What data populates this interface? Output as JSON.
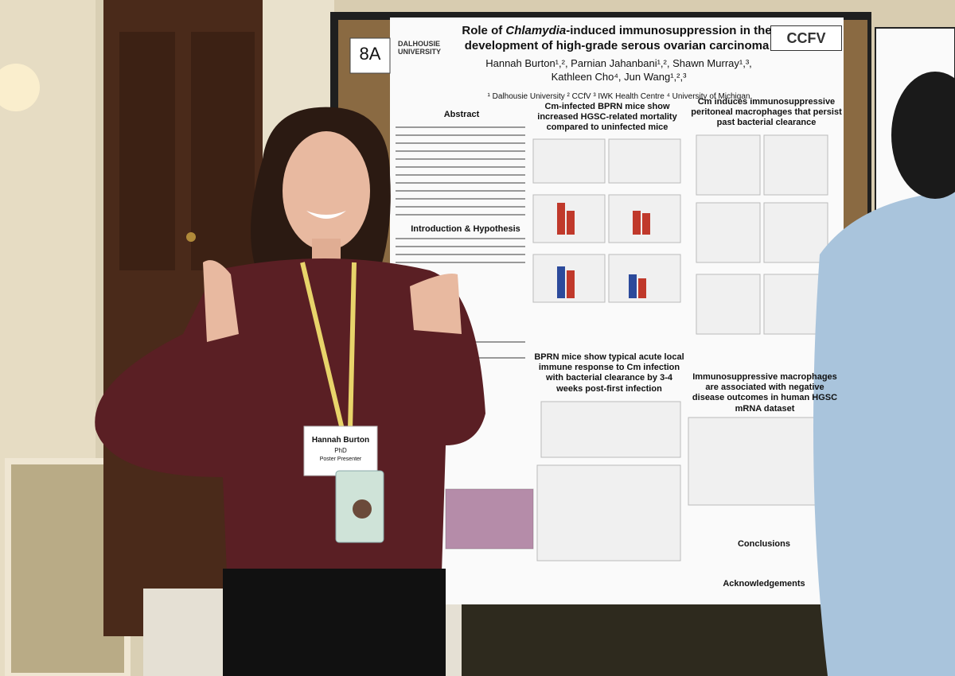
{
  "poster": {
    "number": "8A",
    "logo_left": "DALHOUSIE UNIVERSITY",
    "logo_right": "CCFV",
    "title": {
      "before": "Role of ",
      "italic": "Chlamydia",
      "after": "-induced immunosuppression in the development of high-grade serous ovarian carcinoma"
    },
    "authors": "Hannah Burton¹,², Parnian Jahanbani¹,², Shawn Murray¹,³, Kathleen Cho⁴, Jun Wang¹,²,³",
    "affiliations": "¹ Dalhousie University ² CCfV ³ IWK Health Centre ⁴ University of Michigan",
    "sections": [
      "Abstract",
      "Introduction & Hypothesis",
      "Cm-infected BPRN mice show increased HGSC-related mortality compared to uninfected mice",
      "Cm induces immunosuppressive peritoneal macrophages that persist past bacterial clearance",
      "BPRN mice show typical acute local immune response to Cm infection with bacterial clearance by 3-4 weeks post-first infection",
      "Immunosuppressive macrophages are associated with negative disease outcomes in human HGSC mRNA dataset",
      "Conclusions",
      "Acknowledgements"
    ]
  },
  "badge": {
    "name": "Hannah Burton",
    "degree": "PhD",
    "role": "Poster Presenter"
  }
}
